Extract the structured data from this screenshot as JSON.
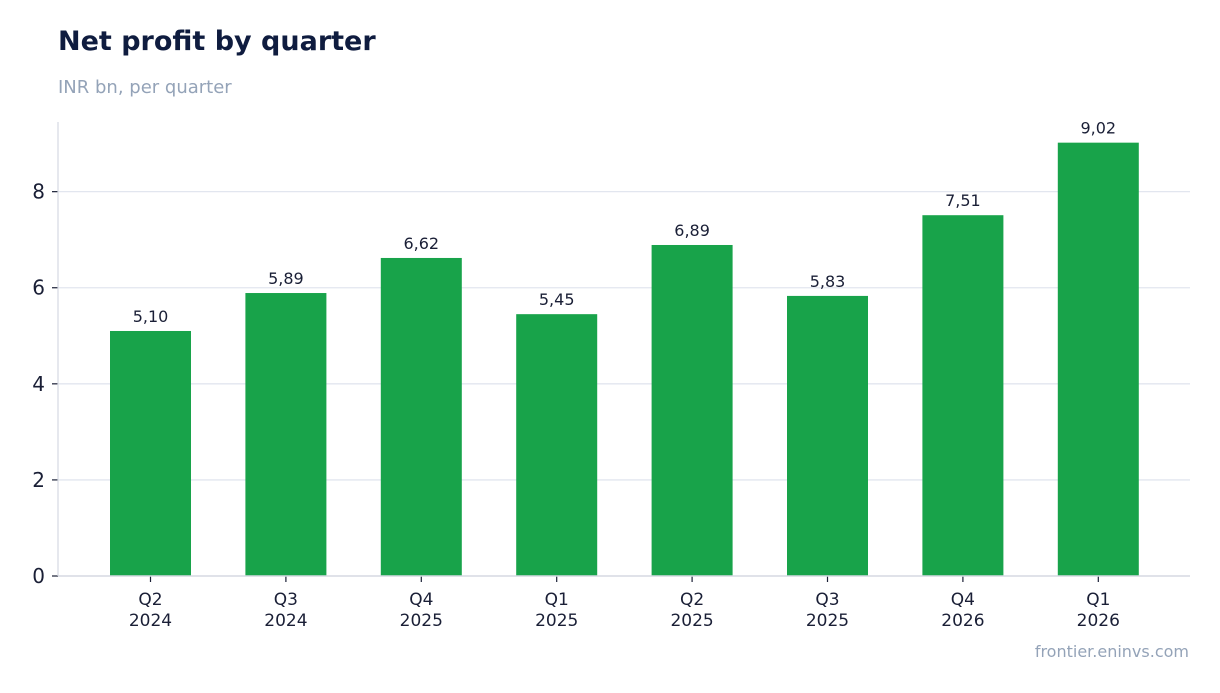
{
  "header": {
    "title": "Net profit by quarter",
    "subtitle": "INR bn, per quarter"
  },
  "footer": {
    "source": "frontier.eninvs.com"
  },
  "colors": {
    "bar": "#18a34a",
    "grid": "#e2e6ef",
    "axis": "#d5d9e2",
    "text": "#1a1f36",
    "muted": "#94a3b8",
    "title": "#0f1c3f"
  },
  "chart_data": {
    "type": "bar",
    "title": "Net profit by quarter",
    "subtitle": "INR bn, per quarter",
    "categories": [
      [
        "Q2",
        "2024"
      ],
      [
        "Q3",
        "2024"
      ],
      [
        "Q4",
        "2025"
      ],
      [
        "Q1",
        "2025"
      ],
      [
        "Q2",
        "2025"
      ],
      [
        "Q3",
        "2025"
      ],
      [
        "Q4",
        "2026"
      ],
      [
        "Q1",
        "2026"
      ]
    ],
    "values": [
      5.1,
      5.89,
      6.62,
      5.45,
      6.89,
      5.83,
      7.51,
      9.02
    ],
    "data_labels": [
      "5,10",
      "5,89",
      "6,62",
      "5,45",
      "6,89",
      "5,83",
      "7,51",
      "9,02"
    ],
    "yticks": [
      0,
      2,
      4,
      6,
      8
    ],
    "ylim": [
      0,
      9.45
    ],
    "grid": true,
    "legend": "none"
  }
}
